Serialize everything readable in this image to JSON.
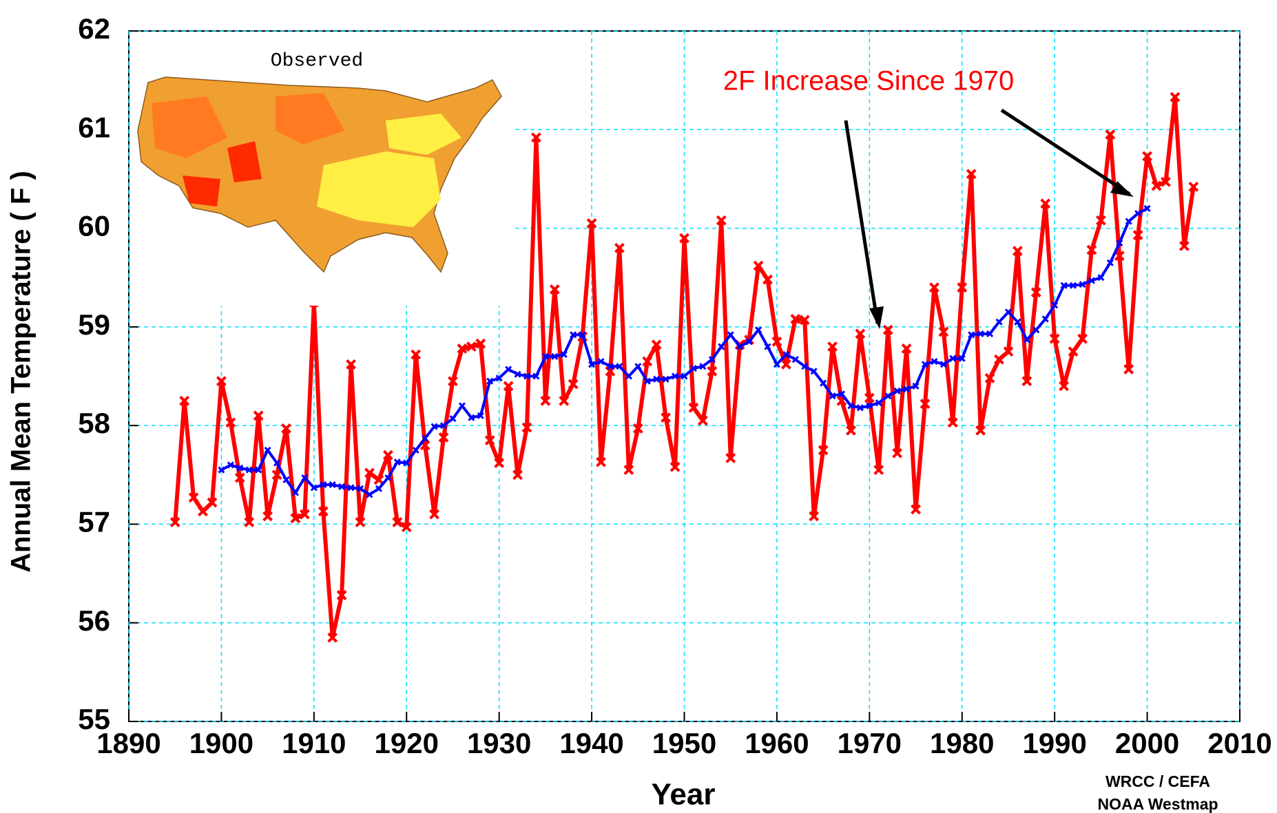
{
  "chart_data": {
    "type": "line",
    "annotations": {
      "headline": "2F Increase Since 1970",
      "inset_title": "Observed",
      "credit_1": "WRCC / CEFA",
      "credit_2": "NOAA Westmap"
    },
    "xlabel": "Year",
    "ylabel": "Annual Mean Temperature ( F )",
    "xlim": [
      1890,
      2010
    ],
    "xticks": [
      1890,
      1900,
      1910,
      1920,
      1930,
      1940,
      1950,
      1960,
      1970,
      1980,
      1990,
      2000,
      2010
    ],
    "ylim": [
      55,
      62
    ],
    "yticks": [
      55,
      56,
      57,
      58,
      59,
      60,
      61,
      62
    ],
    "grid": true,
    "series": [
      {
        "color": "#ff0000",
        "x": [
          1895,
          1896,
          1897,
          1898,
          1899,
          1900,
          1901,
          1902,
          1903,
          1904,
          1905,
          1906,
          1907,
          1908,
          1909,
          1910,
          1911,
          1912,
          1913,
          1914,
          1915,
          1916,
          1917,
          1918,
          1919,
          1920,
          1921,
          1922,
          1923,
          1924,
          1925,
          1926,
          1927,
          1928,
          1929,
          1930,
          1931,
          1932,
          1933,
          1934,
          1935,
          1936,
          1937,
          1938,
          1939,
          1940,
          1941,
          1942,
          1943,
          1944,
          1945,
          1946,
          1947,
          1948,
          1949,
          1950,
          1951,
          1952,
          1953,
          1954,
          1955,
          1956,
          1957,
          1958,
          1959,
          1960,
          1961,
          1962,
          1963,
          1964,
          1965,
          1966,
          1967,
          1968,
          1969,
          1970,
          1971,
          1972,
          1973,
          1974,
          1975,
          1976,
          1977,
          1978,
          1979,
          1980,
          1981,
          1982,
          1983,
          1984,
          1985,
          1986,
          1987,
          1988,
          1989,
          1990,
          1991,
          1992,
          1993,
          1994,
          1995,
          1996,
          1997,
          1998,
          1999,
          2000,
          2001,
          2002,
          2003,
          2004,
          2005
        ],
        "values": [
          57.02,
          58.25,
          57.27,
          57.13,
          57.22,
          58.45,
          58.03,
          57.47,
          57.02,
          58.1,
          57.08,
          57.5,
          57.97,
          57.06,
          57.1,
          59.25,
          57.13,
          55.85,
          56.28,
          58.62,
          57.02,
          57.52,
          57.45,
          57.7,
          57.02,
          56.97,
          58.72,
          57.8,
          57.1,
          57.88,
          58.45,
          58.78,
          58.8,
          58.83,
          57.85,
          57.62,
          58.4,
          57.5,
          57.98,
          60.92,
          58.25,
          59.38,
          58.25,
          58.42,
          58.9,
          60.05,
          57.63,
          58.55,
          59.8,
          57.55,
          57.97,
          58.65,
          58.82,
          58.08,
          57.58,
          59.9,
          58.18,
          58.05,
          58.55,
          60.08,
          57.67,
          58.82,
          58.87,
          59.62,
          59.48,
          58.85,
          58.62,
          59.08,
          59.07,
          57.08,
          57.75,
          58.8,
          58.25,
          57.95,
          58.93,
          58.28,
          57.55,
          58.97,
          57.72,
          58.78,
          57.15,
          58.22,
          59.4,
          58.95,
          58.03,
          59.4,
          60.55,
          57.95,
          58.48,
          58.67,
          58.75,
          59.77,
          58.45,
          59.35,
          60.25,
          58.88,
          58.4,
          58.75,
          58.88,
          59.78,
          60.08,
          60.95,
          59.72,
          58.57,
          59.93,
          60.73,
          60.43,
          60.47,
          61.33,
          59.82,
          60.42
        ]
      },
      {
        "color": "#0000ff",
        "x": [
          1900,
          1901,
          1902,
          1903,
          1904,
          1905,
          1906,
          1907,
          1908,
          1909,
          1910,
          1911,
          1912,
          1913,
          1914,
          1915,
          1916,
          1917,
          1918,
          1919,
          1920,
          1921,
          1922,
          1923,
          1924,
          1925,
          1926,
          1927,
          1928,
          1929,
          1930,
          1931,
          1932,
          1933,
          1934,
          1935,
          1936,
          1937,
          1938,
          1939,
          1940,
          1941,
          1942,
          1943,
          1944,
          1945,
          1946,
          1947,
          1948,
          1949,
          1950,
          1951,
          1952,
          1953,
          1954,
          1955,
          1956,
          1957,
          1958,
          1959,
          1960,
          1961,
          1962,
          1963,
          1964,
          1965,
          1966,
          1967,
          1968,
          1969,
          1970,
          1971,
          1972,
          1973,
          1974,
          1975,
          1976,
          1977,
          1978,
          1979,
          1980,
          1981,
          1982,
          1983,
          1984,
          1985,
          1986,
          1987,
          1988,
          1989,
          1990,
          1991,
          1992,
          1993,
          1994,
          1995,
          1996,
          1997,
          1998,
          1999,
          2000
        ],
        "values": [
          57.55,
          57.6,
          57.57,
          57.55,
          57.55,
          57.75,
          57.62,
          57.45,
          57.32,
          57.47,
          57.37,
          57.4,
          57.4,
          57.38,
          57.37,
          57.36,
          57.3,
          57.36,
          57.47,
          57.63,
          57.62,
          57.75,
          57.87,
          57.99,
          58.0,
          58.07,
          58.2,
          58.08,
          58.1,
          58.45,
          58.48,
          58.57,
          58.52,
          58.5,
          58.5,
          58.7,
          58.7,
          58.72,
          58.92,
          58.92,
          58.62,
          58.65,
          58.6,
          58.6,
          58.5,
          58.6,
          58.45,
          58.47,
          58.47,
          58.5,
          58.5,
          58.58,
          58.6,
          58.67,
          58.8,
          58.92,
          58.8,
          58.85,
          58.97,
          58.8,
          58.62,
          58.72,
          58.67,
          58.6,
          58.55,
          58.43,
          58.3,
          58.32,
          58.2,
          58.18,
          58.2,
          58.23,
          58.3,
          58.35,
          58.37,
          58.4,
          58.62,
          58.65,
          58.62,
          58.68,
          58.68,
          58.92,
          58.93,
          58.93,
          59.05,
          59.15,
          59.05,
          58.87,
          58.97,
          59.08,
          59.22,
          59.42,
          59.42,
          59.43,
          59.47,
          59.5,
          59.65,
          59.85,
          60.07,
          60.15,
          60.2
        ]
      }
    ]
  }
}
